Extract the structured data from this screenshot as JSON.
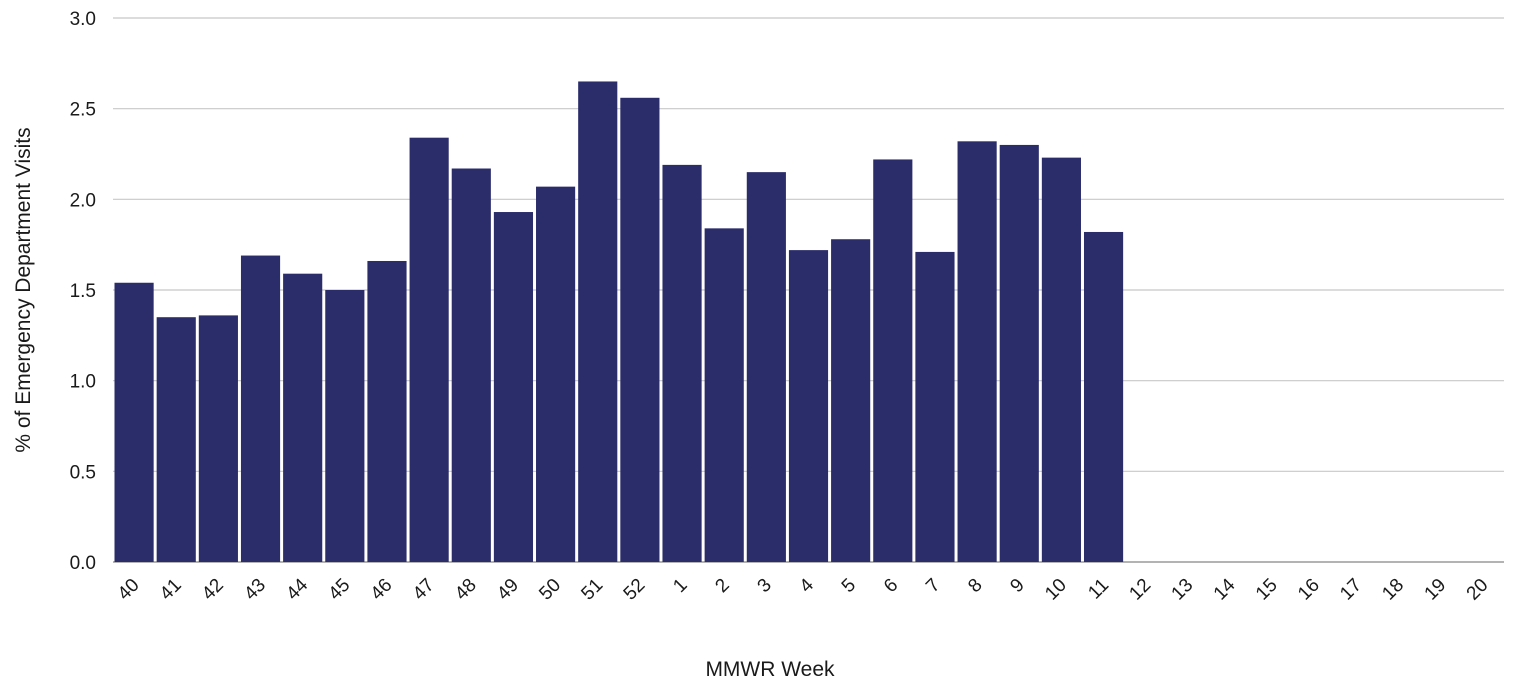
{
  "chart_data": {
    "type": "bar",
    "title": "",
    "xlabel": "MMWR Week",
    "ylabel": "% of Emergency Department Visits",
    "ylim": [
      0,
      3.0
    ],
    "yticks": [
      "0.0",
      "0.5",
      "1.0",
      "1.5",
      "2.0",
      "2.5",
      "3.0"
    ],
    "grid": true,
    "legend": "none",
    "bar_color": "#2b2d6b",
    "categories": [
      "40",
      "41",
      "42",
      "43",
      "44",
      "45",
      "46",
      "47",
      "48",
      "49",
      "50",
      "51",
      "52",
      "1",
      "2",
      "3",
      "4",
      "5",
      "6",
      "7",
      "8",
      "9",
      "10",
      "11",
      "12",
      "13",
      "14",
      "15",
      "16",
      "17",
      "18",
      "19",
      "20"
    ],
    "values": [
      1.54,
      1.35,
      1.36,
      1.69,
      1.59,
      1.5,
      1.66,
      2.34,
      2.17,
      1.93,
      2.07,
      2.65,
      2.56,
      2.19,
      1.84,
      2.15,
      1.72,
      1.78,
      2.22,
      1.71,
      2.32,
      2.3,
      2.23,
      1.82,
      null,
      null,
      null,
      null,
      null,
      null,
      null,
      null,
      null
    ]
  }
}
